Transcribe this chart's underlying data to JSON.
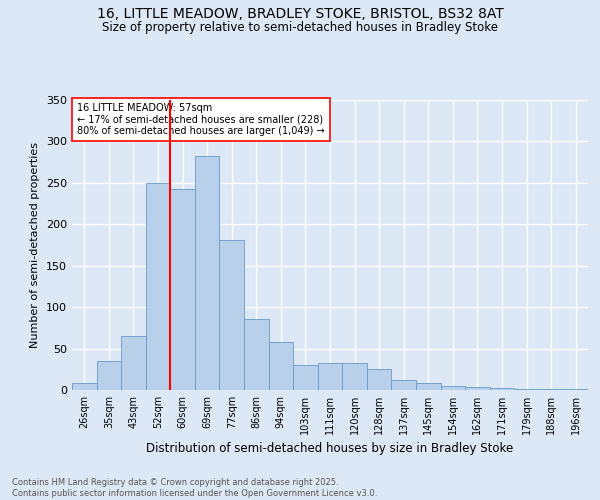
{
  "title_line1": "16, LITTLE MEADOW, BRADLEY STOKE, BRISTOL, BS32 8AT",
  "title_line2": "Size of property relative to semi-detached houses in Bradley Stoke",
  "xlabel": "Distribution of semi-detached houses by size in Bradley Stoke",
  "ylabel": "Number of semi-detached properties",
  "footnote": "Contains HM Land Registry data © Crown copyright and database right 2025.\nContains public sector information licensed under the Open Government Licence v3.0.",
  "categories": [
    "26sqm",
    "35sqm",
    "43sqm",
    "52sqm",
    "60sqm",
    "69sqm",
    "77sqm",
    "86sqm",
    "94sqm",
    "103sqm",
    "111sqm",
    "120sqm",
    "128sqm",
    "137sqm",
    "145sqm",
    "154sqm",
    "162sqm",
    "171sqm",
    "179sqm",
    "188sqm",
    "196sqm"
  ],
  "values": [
    8,
    35,
    65,
    250,
    243,
    282,
    181,
    86,
    58,
    30,
    33,
    33,
    25,
    12,
    8,
    5,
    4,
    2,
    1,
    1,
    1
  ],
  "bar_color": "#b8d0ea",
  "bar_edge_color": "#6699cc",
  "bg_color": "#dce8f5",
  "grid_color": "#ffffff",
  "vline_x": 3.5,
  "vline_color": "red",
  "annotation_title": "16 LITTLE MEADOW: 57sqm",
  "annotation_line2": "← 17% of semi-detached houses are smaller (228)",
  "annotation_line3": "80% of semi-detached houses are larger (1,049) →",
  "ylim": [
    0,
    350
  ],
  "yticks": [
    0,
    50,
    100,
    150,
    200,
    250,
    300,
    350
  ],
  "title_fontsize": 10,
  "subtitle_fontsize": 8.5,
  "xlabel_fontsize": 8.5,
  "ylabel_fontsize": 8,
  "tick_fontsize": 7,
  "annot_fontsize": 7,
  "footnote_fontsize": 6
}
